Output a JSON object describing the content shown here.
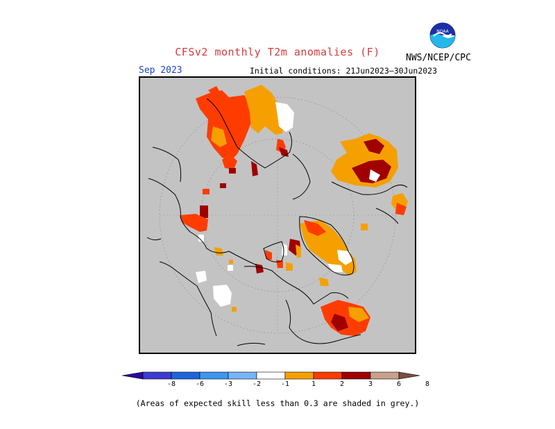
{
  "header": {
    "title": "CFSv2 monthly T2m anomalies (F)",
    "month": "Sep 2023",
    "initial_conditions": "Initial conditions: 21Jun2023–30Jun2023",
    "agency": "NWS/NCEP/CPC",
    "logo_text": "NOAA"
  },
  "colorbar": {
    "ticks": [
      "-8",
      "-6",
      "-3",
      "-2",
      "-1",
      "1",
      "2",
      "3",
      "6",
      "8"
    ],
    "colors": [
      "#2a0a9a",
      "#3c3cd2",
      "#1e64dc",
      "#3c96f0",
      "#78b4f8",
      "#ffffff",
      "#f5a000",
      "#ff3c00",
      "#a00000",
      "#c8a08c",
      "#785040"
    ]
  },
  "map": {
    "background": "#c3c3c3",
    "land_outline": "#000000",
    "warm_light": "#f5a000",
    "warm_mid": "#ff3c00",
    "warm_dark": "#a00000",
    "neutral": "#ffffff"
  },
  "footnote": "(Areas of expected skill less than 0.3 are shaded in grey.)"
}
